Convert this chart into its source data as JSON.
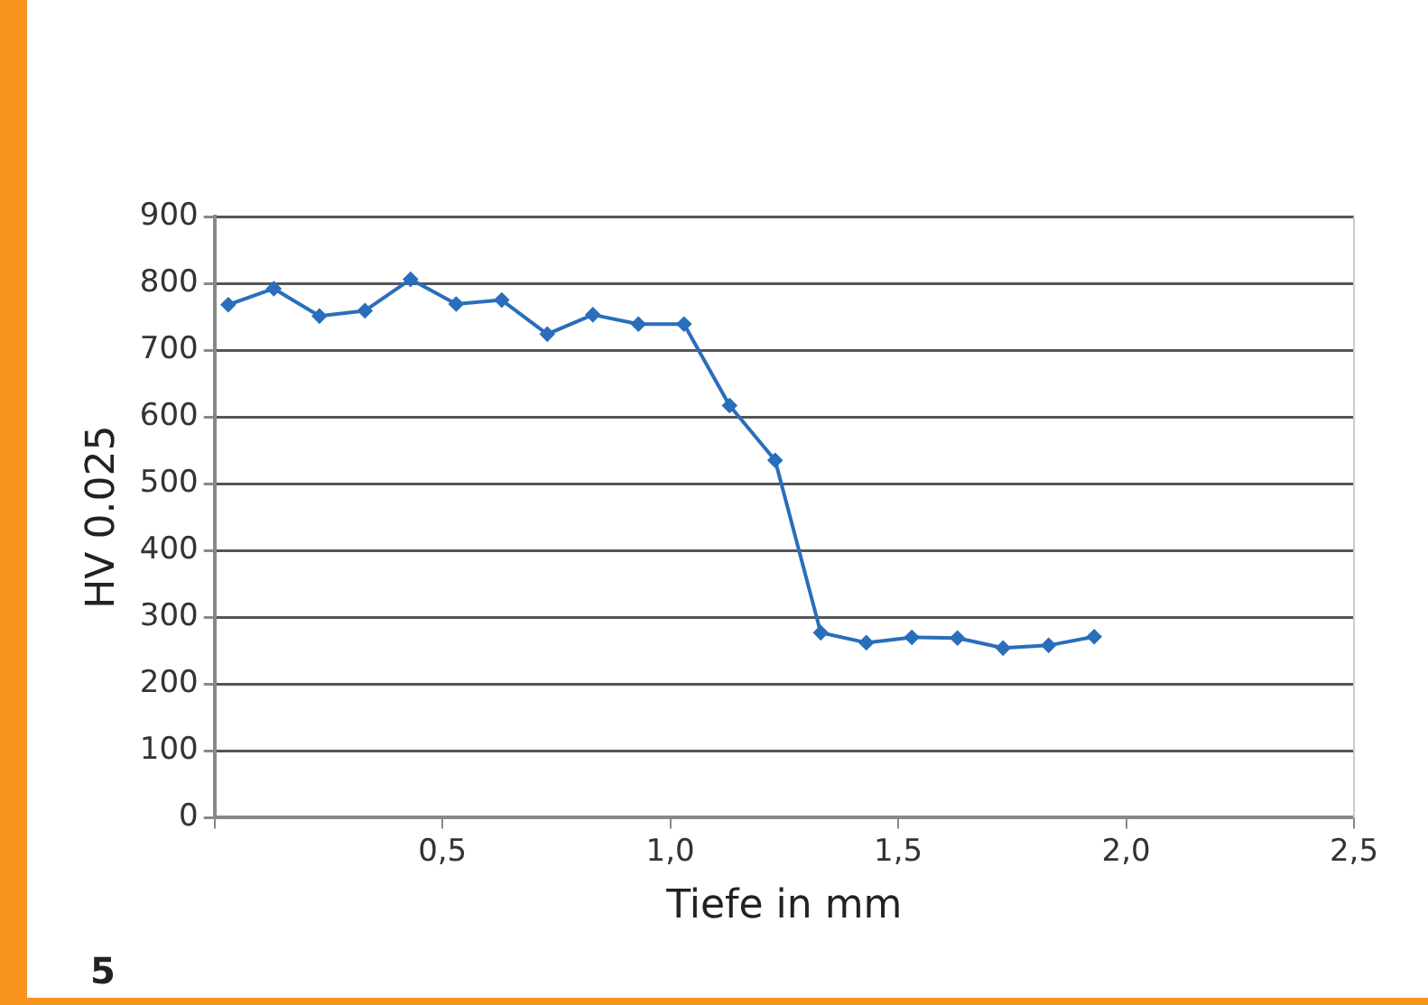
{
  "chart_data": {
    "type": "line",
    "xlabel": "Tiefe in mm",
    "ylabel": "HV 0.025",
    "x": [
      0.03,
      0.13,
      0.23,
      0.33,
      0.43,
      0.53,
      0.63,
      0.73,
      0.83,
      0.93,
      1.03,
      1.13,
      1.23,
      1.33,
      1.43,
      1.53,
      1.63,
      1.73,
      1.83,
      1.93
    ],
    "series": [
      {
        "color": "#2a6ebb",
        "values": [
          768,
          792,
          751,
          759,
          806,
          769,
          775,
          724,
          753,
          739,
          739,
          617,
          535,
          277,
          262,
          270,
          269,
          254,
          258,
          271
        ]
      }
    ],
    "xlim": [
      0,
      2.5
    ],
    "xticks": [
      {
        "value": 0,
        "label": null
      },
      {
        "value": 0.5,
        "label": "0,5"
      },
      {
        "value": 1,
        "label": "1,0"
      },
      {
        "value": 1.5,
        "label": "1,5"
      },
      {
        "value": 2,
        "label": "2,0"
      },
      {
        "value": 2.5,
        "label": "2,5"
      }
    ],
    "ylim": [
      0,
      900
    ],
    "yticks": [
      0,
      100,
      200,
      300,
      400,
      500,
      600,
      700,
      800,
      900
    ],
    "grid": "y",
    "legend": false,
    "marker": "diamond",
    "line_style": "solid",
    "annotations": [
      "5"
    ]
  }
}
